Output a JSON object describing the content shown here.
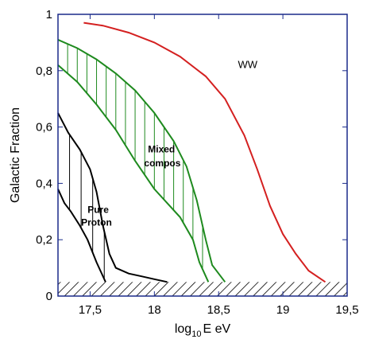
{
  "chart_data": {
    "type": "line",
    "title": "",
    "xlabel_base": "log",
    "xlabel_sub": "10",
    "xlabel_rest": "E eV",
    "ylabel": "Galactic Fraction",
    "xlim": [
      17.25,
      19.5
    ],
    "ylim": [
      0,
      1
    ],
    "x_ticks": [
      {
        "value": 17.5,
        "label": "17,5"
      },
      {
        "value": 18,
        "label": "18"
      },
      {
        "value": 18.5,
        "label": "18,5"
      },
      {
        "value": 19,
        "label": "19"
      },
      {
        "value": 19.5,
        "label": "19,5"
      }
    ],
    "y_ticks": [
      {
        "value": 0,
        "label": "0"
      },
      {
        "value": 0.2,
        "label": "0,2"
      },
      {
        "value": 0.4,
        "label": "0,4"
      },
      {
        "value": 0.6,
        "label": "0,6"
      },
      {
        "value": 0.8,
        "label": "0,8"
      },
      {
        "value": 1,
        "label": "1"
      }
    ],
    "hatched_band": {
      "y_max": 0.05
    },
    "series": [
      {
        "name": "WW",
        "color": "#d42020",
        "points": [
          [
            17.45,
            0.97
          ],
          [
            17.6,
            0.96
          ],
          [
            17.8,
            0.935
          ],
          [
            18.0,
            0.9
          ],
          [
            18.2,
            0.85
          ],
          [
            18.4,
            0.78
          ],
          [
            18.55,
            0.7
          ],
          [
            18.7,
            0.57
          ],
          [
            18.8,
            0.45
          ],
          [
            18.9,
            0.32
          ],
          [
            19.0,
            0.22
          ],
          [
            19.1,
            0.15
          ],
          [
            19.2,
            0.09
          ],
          [
            19.33,
            0.05
          ]
        ]
      },
      {
        "name": "Mixed compos",
        "color": "#1e8a1e",
        "upper": [
          [
            17.25,
            0.91
          ],
          [
            17.4,
            0.88
          ],
          [
            17.55,
            0.84
          ],
          [
            17.7,
            0.79
          ],
          [
            17.85,
            0.73
          ],
          [
            18.0,
            0.65
          ],
          [
            18.15,
            0.55
          ],
          [
            18.25,
            0.46
          ],
          [
            18.33,
            0.34
          ],
          [
            18.4,
            0.2
          ],
          [
            18.45,
            0.11
          ],
          [
            18.55,
            0.05
          ]
        ],
        "lower": [
          [
            17.25,
            0.82
          ],
          [
            17.4,
            0.76
          ],
          [
            17.55,
            0.68
          ],
          [
            17.7,
            0.59
          ],
          [
            17.85,
            0.48
          ],
          [
            18.0,
            0.38
          ],
          [
            18.1,
            0.33
          ],
          [
            18.2,
            0.28
          ],
          [
            18.3,
            0.2
          ],
          [
            18.35,
            0.12
          ],
          [
            18.42,
            0.05
          ]
        ]
      },
      {
        "name": "Pure Proton",
        "color": "#000000",
        "upper": [
          [
            17.25,
            0.65
          ],
          [
            17.33,
            0.58
          ],
          [
            17.42,
            0.52
          ],
          [
            17.5,
            0.45
          ],
          [
            17.55,
            0.37
          ],
          [
            17.6,
            0.25
          ],
          [
            17.65,
            0.15
          ],
          [
            17.7,
            0.1
          ],
          [
            17.8,
            0.08
          ],
          [
            17.9,
            0.07
          ],
          [
            18.0,
            0.06
          ],
          [
            18.1,
            0.05
          ]
        ],
        "lower": [
          [
            17.25,
            0.38
          ],
          [
            17.3,
            0.33
          ],
          [
            17.35,
            0.3
          ],
          [
            17.42,
            0.25
          ],
          [
            17.48,
            0.2
          ],
          [
            17.55,
            0.12
          ],
          [
            17.62,
            0.05
          ]
        ]
      }
    ],
    "annotations": [
      {
        "id": "ww",
        "text": "WW",
        "x": 18.65,
        "y": 0.81
      },
      {
        "id": "mixed1",
        "text": "Mixed",
        "x": 17.95,
        "y": 0.51
      },
      {
        "id": "mixed2",
        "text": "compos",
        "x": 17.92,
        "y": 0.46
      },
      {
        "id": "proton1",
        "text": "Pure",
        "x": 17.48,
        "y": 0.295
      },
      {
        "id": "proton2",
        "text": "Proton",
        "x": 17.43,
        "y": 0.25
      }
    ]
  }
}
